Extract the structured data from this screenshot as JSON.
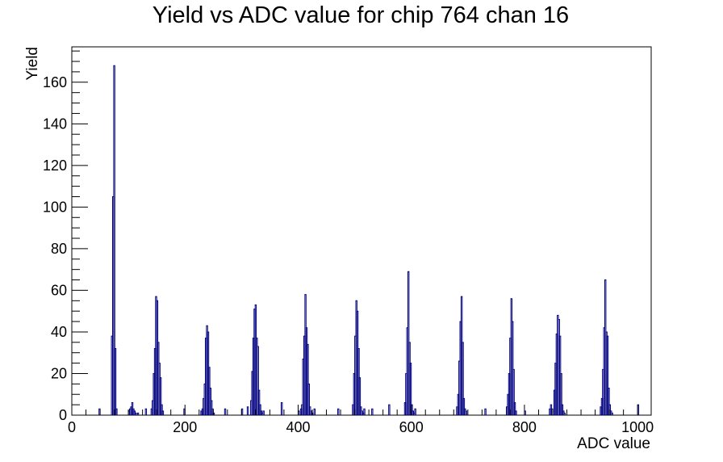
{
  "chart_data": {
    "type": "bar",
    "title": "Yield vs ADC value for chip 764 chan 16",
    "xlabel": "ADC value",
    "ylabel": "Yield",
    "xlim": [
      0,
      1024
    ],
    "ylim": [
      0,
      177
    ],
    "x_ticks": [
      0,
      200,
      400,
      600,
      800,
      1000
    ],
    "y_ticks": [
      0,
      20,
      40,
      60,
      80,
      100,
      120,
      140,
      160
    ],
    "grid": false,
    "legend": "none",
    "series_color": "#000080",
    "bin_width": 2,
    "series": [
      {
        "x": [
          48,
          70,
          72,
          74,
          76,
          78,
          100,
          102,
          104,
          106,
          108,
          110,
          112,
          116,
          130,
          140,
          142,
          144,
          146,
          148,
          150,
          152,
          154,
          156,
          158,
          160,
          198,
          228,
          230,
          232,
          234,
          236,
          238,
          240,
          242,
          244,
          246,
          248,
          250,
          270,
          300,
          310,
          316,
          318,
          320,
          322,
          324,
          326,
          328,
          330,
          332,
          334,
          336,
          338,
          370,
          400,
          404,
          406,
          408,
          410,
          412,
          414,
          416,
          418,
          420,
          422,
          424,
          428,
          470,
          496,
          498,
          500,
          502,
          504,
          506,
          508,
          510,
          512,
          514,
          516,
          530,
          560,
          588,
          590,
          592,
          594,
          596,
          598,
          600,
          602,
          604,
          606,
          680,
          682,
          684,
          686,
          688,
          690,
          692,
          694,
          696,
          730,
          768,
          770,
          772,
          774,
          776,
          778,
          780,
          782,
          784,
          800,
          844,
          846,
          848,
          852,
          854,
          856,
          858,
          860,
          862,
          864,
          866,
          868,
          870,
          934,
          936,
          938,
          940,
          942,
          944,
          946,
          948,
          950,
          952,
          954,
          1000
        ],
        "values": [
          3,
          38,
          105,
          168,
          32,
          3,
          2,
          3,
          4,
          6,
          3,
          2,
          1,
          1,
          3,
          3,
          7,
          20,
          32,
          57,
          55,
          35,
          25,
          18,
          5,
          2,
          3,
          2,
          3,
          8,
          15,
          37,
          43,
          40,
          23,
          13,
          7,
          3,
          1,
          3,
          3,
          4,
          7,
          21,
          37,
          51,
          53,
          37,
          33,
          12,
          5,
          2,
          1,
          2,
          6,
          2,
          3,
          5,
          27,
          38,
          58,
          42,
          34,
          15,
          4,
          2,
          1,
          3,
          3,
          5,
          20,
          38,
          55,
          50,
          32,
          18,
          4,
          2,
          1,
          3,
          3,
          5,
          6,
          20,
          42,
          69,
          35,
          25,
          5,
          2,
          1,
          3,
          4,
          10,
          26,
          45,
          57,
          35,
          8,
          3,
          2,
          3,
          4,
          10,
          20,
          37,
          56,
          45,
          22,
          6,
          2,
          2,
          3,
          5,
          3,
          12,
          25,
          39,
          48,
          46,
          38,
          20,
          5,
          2,
          1,
          4,
          8,
          22,
          42,
          65,
          40,
          38,
          13,
          5,
          2,
          1,
          5
        ]
      }
    ]
  }
}
